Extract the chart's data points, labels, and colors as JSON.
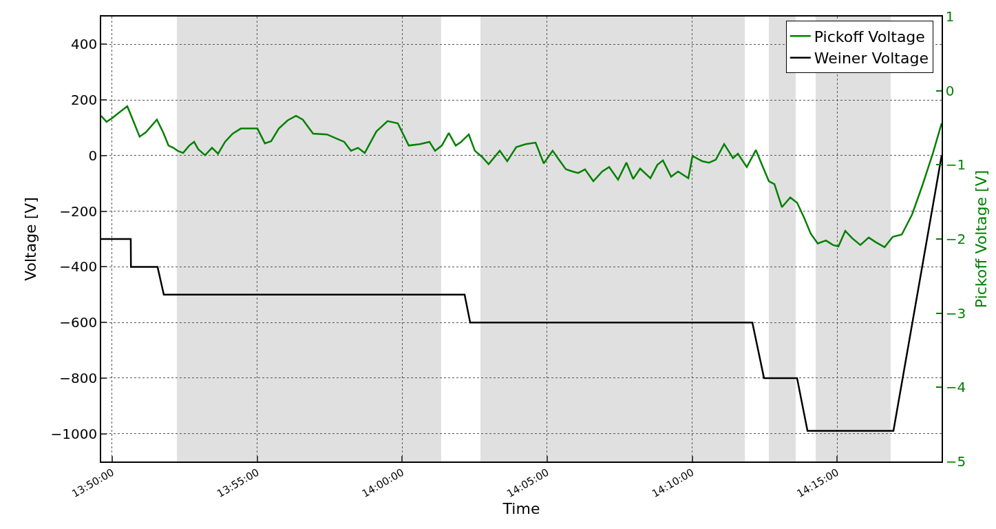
{
  "chart_data": {
    "type": "line",
    "xlabel": "Time",
    "ylabel": "Voltage [V]",
    "y2label": "Pickoff Voltage [V]",
    "xlim": [
      13.827,
      14.3101
    ],
    "xticks": [
      {
        "value": 13.8333,
        "label": "13:50:00"
      },
      {
        "value": 13.9167,
        "label": "13:55:00"
      },
      {
        "value": 14.0,
        "label": "14:00:00"
      },
      {
        "value": 14.0833,
        "label": "14:05:00"
      },
      {
        "value": 14.1667,
        "label": "14:10:00"
      },
      {
        "value": 14.25,
        "label": "14:15:00"
      }
    ],
    "ylim": [
      -1100,
      500
    ],
    "yticks": [
      {
        "value": -1000,
        "label": "−1000"
      },
      {
        "value": -800,
        "label": "−800"
      },
      {
        "value": -600,
        "label": "−600"
      },
      {
        "value": -400,
        "label": "−400"
      },
      {
        "value": -200,
        "label": "−200"
      },
      0,
      200,
      400
    ],
    "y2lim": [
      -5,
      1
    ],
    "y2ticks": [
      {
        "value": -5,
        "label": "−5"
      },
      {
        "value": -4,
        "label": "−4"
      },
      {
        "value": -3,
        "label": "−3"
      },
      {
        "value": -2,
        "label": "−2"
      },
      {
        "value": -1,
        "label": "−1"
      },
      0,
      1
    ],
    "grid": true,
    "legend": "top right",
    "series": [
      {
        "name": "Pickoff Voltage",
        "color": "#008000",
        "axis": "y2",
        "x": [
          13.827,
          13.8301,
          13.8333,
          13.8365,
          13.842,
          13.8448,
          13.8491,
          13.8527,
          13.859,
          13.8626,
          13.8657,
          13.8685,
          13.8709,
          13.8741,
          13.8776,
          13.8804,
          13.8828,
          13.8867,
          13.8907,
          13.8942,
          13.8982,
          13.9025,
          13.9073,
          13.9168,
          13.9211,
          13.9247,
          13.9291,
          13.9342,
          13.939,
          13.9429,
          13.9488,
          13.9568,
          13.9627,
          13.9667,
          13.9706,
          13.9746,
          13.9785,
          13.9852,
          13.9916,
          13.9975,
          14.0038,
          14.0102,
          14.0157,
          14.0189,
          14.0228,
          14.0268,
          14.0308,
          14.0339,
          14.0383,
          14.0418,
          14.0458,
          14.0497,
          14.0561,
          14.0604,
          14.0656,
          14.0711,
          14.0767,
          14.0814,
          14.0865,
          14.0901,
          14.0941,
          14.098,
          14.1012,
          14.1051,
          14.1099,
          14.115,
          14.119,
          14.1241,
          14.1289,
          14.1328,
          14.1368,
          14.1427,
          14.1467,
          14.1499,
          14.1546,
          14.1586,
          14.1645,
          14.1669,
          14.1724,
          14.1764,
          14.1803,
          14.1851,
          14.1902,
          14.193,
          14.1981,
          14.2033,
          14.2072,
          14.2108,
          14.214,
          14.2183,
          14.2231,
          14.227,
          14.231,
          14.2349,
          14.2389,
          14.2436,
          14.2476,
          14.2508,
          14.2547,
          14.2587,
          14.2634,
          14.2682,
          14.2721,
          14.2773,
          14.282,
          14.2872,
          14.2931,
          14.299,
          14.305,
          14.3101
        ],
        "values": [
          -0.34,
          -0.42,
          -0.37,
          -0.31,
          -0.21,
          -0.37,
          -0.62,
          -0.56,
          -0.39,
          -0.56,
          -0.74,
          -0.77,
          -0.81,
          -0.84,
          -0.74,
          -0.69,
          -0.79,
          -0.87,
          -0.77,
          -0.85,
          -0.69,
          -0.58,
          -0.51,
          -0.51,
          -0.71,
          -0.68,
          -0.51,
          -0.4,
          -0.34,
          -0.39,
          -0.58,
          -0.59,
          -0.65,
          -0.69,
          -0.81,
          -0.77,
          -0.84,
          -0.55,
          -0.41,
          -0.44,
          -0.74,
          -0.72,
          -0.69,
          -0.81,
          -0.74,
          -0.57,
          -0.74,
          -0.69,
          -0.59,
          -0.81,
          -0.89,
          -0.99,
          -0.81,
          -0.95,
          -0.76,
          -0.72,
          -0.7,
          -0.98,
          -0.81,
          -0.93,
          -1.06,
          -1.09,
          -1.11,
          -1.06,
          -1.22,
          -1.09,
          -1.03,
          -1.2,
          -0.97,
          -1.19,
          -1.05,
          -1.18,
          -1.0,
          -0.94,
          -1.16,
          -1.09,
          -1.18,
          -0.88,
          -0.95,
          -0.97,
          -0.93,
          -0.72,
          -0.91,
          -0.85,
          -1.03,
          -0.8,
          -1.02,
          -1.22,
          -1.26,
          -1.57,
          -1.44,
          -1.51,
          -1.71,
          -1.93,
          -2.06,
          -2.02,
          -2.08,
          -2.1,
          -1.89,
          -1.99,
          -2.08,
          -1.98,
          -2.04,
          -2.11,
          -1.97,
          -1.94,
          -1.67,
          -1.28,
          -0.85,
          -0.44
        ]
      },
      {
        "name": "Weiner Voltage",
        "color": "#000000",
        "x": [
          13.827,
          13.844,
          13.8441,
          13.8594,
          13.863,
          14.0256,
          14.0359,
          14.0391,
          14.2013,
          14.208,
          14.227,
          14.233,
          14.2824,
          14.3101
        ],
        "values": [
          -300,
          -300,
          -400,
          -400,
          -500,
          -500,
          -500,
          -600,
          -600,
          -800,
          -800,
          -990,
          -990,
          0
        ]
      }
    ],
    "bands": [
      {
        "axis": "x",
        "from": 13.8705,
        "to": 14.0224,
        "color": "#e0e0e0"
      },
      {
        "axis": "x",
        "from": 14.045,
        "to": 14.197,
        "color": "#e0e0e0"
      },
      {
        "axis": "x",
        "from": 14.2108,
        "to": 14.2262,
        "color": "#e0e0e0"
      },
      {
        "axis": "x",
        "from": 14.2377,
        "to": 14.2808,
        "color": "#e0e0e0"
      }
    ]
  }
}
